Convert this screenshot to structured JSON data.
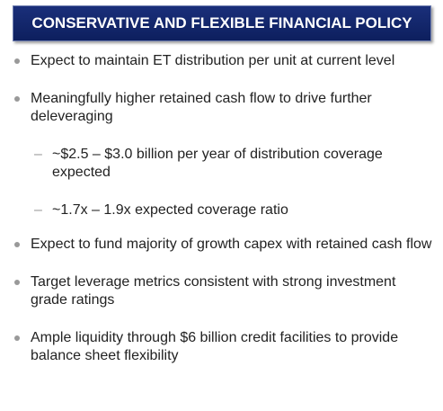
{
  "header": {
    "title": "CONSERVATIVE AND FLEXIBLE FINANCIAL POLICY"
  },
  "bullets": [
    {
      "text": "Expect to maintain ET distribution per unit at current level"
    },
    {
      "text": "Meaningfully higher retained cash flow to drive further deleveraging",
      "sub": [
        "~$2.5 – $3.0 billion per year of distribution coverage expected",
        "~1.7x – 1.9x expected coverage ratio"
      ]
    },
    {
      "text": "Expect to fund majority of growth capex with retained cash flow"
    },
    {
      "text": "Target leverage metrics consistent with strong investment grade ratings"
    },
    {
      "text": "Ample liquidity through $6 billion credit facilities to provide balance sheet flexibility"
    }
  ]
}
